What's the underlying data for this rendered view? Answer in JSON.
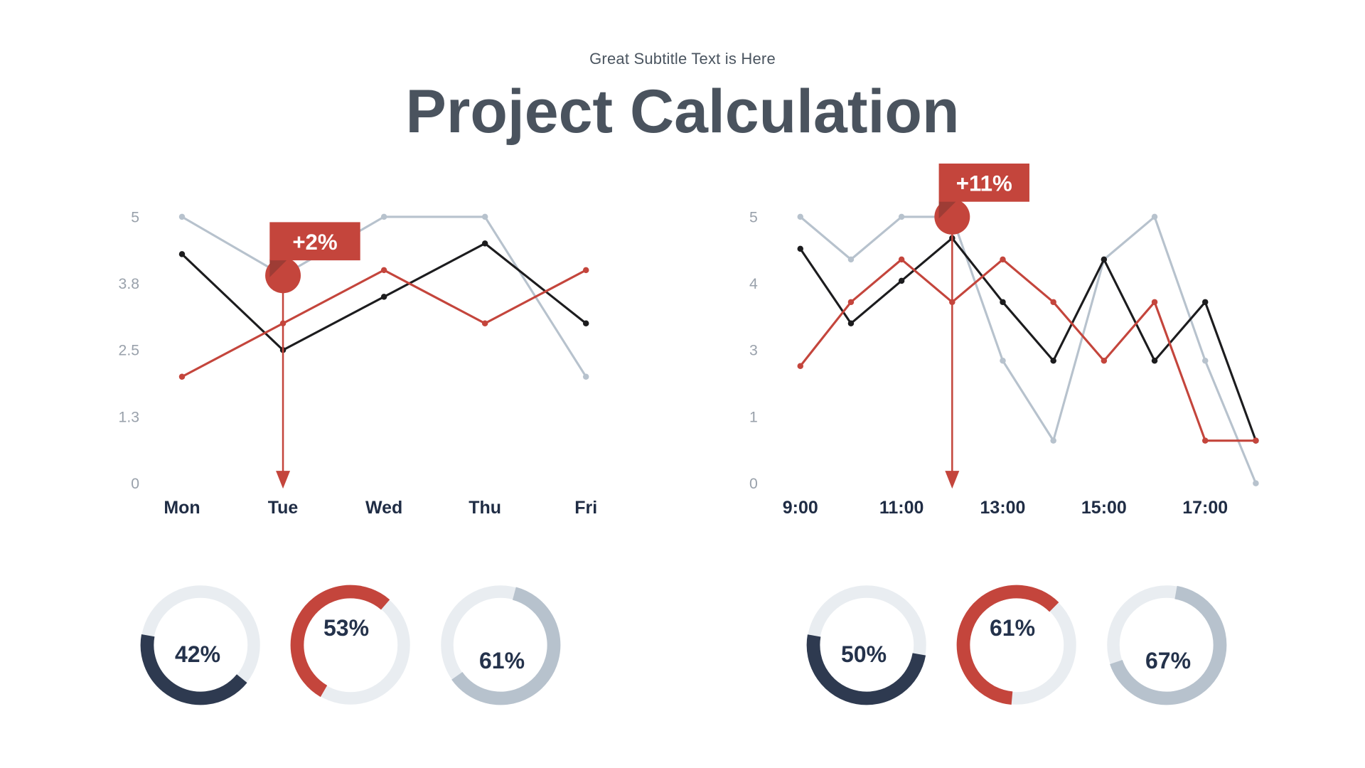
{
  "page": {
    "subtitle": "Great Subtitle Text is Here",
    "title": "Project Calculation"
  },
  "colors": {
    "navy": "#2e3a50",
    "red": "#c4453c",
    "red_dark": "#9e3c35",
    "gray": "#b7c2cd",
    "black": "#1c1c1e",
    "track": "#e9edf1",
    "text_dark": "#1f2c44",
    "tick_gray": "#99a1ab"
  },
  "chart_data": [
    {
      "type": "line",
      "name": "weekday-line-chart",
      "categories": [
        "Mon",
        "Tue",
        "Wed",
        "Thu",
        "Fri"
      ],
      "y_ticks": [
        "5",
        "3.8",
        "2.5",
        "1.3",
        "0"
      ],
      "ylim": [
        0,
        5
      ],
      "grid": false,
      "legend": "none",
      "series": [
        {
          "name": "gray-series",
          "color_key": "gray",
          "values": [
            5,
            3.9,
            5,
            5,
            2
          ]
        },
        {
          "name": "black-series",
          "color_key": "black",
          "values": [
            4.3,
            2.5,
            3.5,
            4.5,
            3
          ]
        },
        {
          "name": "red-series",
          "color_key": "red",
          "values": [
            2,
            3,
            4,
            3,
            4
          ]
        }
      ],
      "annotation": {
        "label": "+2%",
        "point_index": 1,
        "value": 3.9,
        "category": "Tue"
      }
    },
    {
      "type": "line",
      "name": "hourly-line-chart",
      "categories": [
        "9:00",
        "11:00",
        "13:00",
        "15:00",
        "17:00"
      ],
      "x_label_indices": [
        0,
        2,
        4,
        6,
        8
      ],
      "y_ticks": [
        "5",
        "4",
        "3",
        "1",
        "0"
      ],
      "ylim": [
        0,
        5
      ],
      "grid": false,
      "legend": "none",
      "series": [
        {
          "name": "gray-series",
          "color_key": "gray",
          "values": [
            5,
            4.2,
            5,
            5,
            2.3,
            0.8,
            4.2,
            5,
            2.3,
            0
          ]
        },
        {
          "name": "black-series",
          "color_key": "black",
          "values": [
            4.4,
            3,
            3.8,
            4.6,
            3.4,
            2.3,
            4.2,
            2.3,
            3.4,
            0.8
          ]
        },
        {
          "name": "red-series",
          "color_key": "red",
          "values": [
            2.2,
            3.4,
            4.2,
            3.4,
            4.2,
            3.4,
            2.3,
            3.4,
            0.8,
            0.8
          ]
        }
      ],
      "annotation": {
        "label": "+11%",
        "point_index": 3,
        "value": 5,
        "category": "12:00"
      }
    },
    {
      "type": "donut-group",
      "name": "left-donut-group",
      "items": [
        {
          "label": "42%",
          "percent": 42,
          "color_key": "navy",
          "start_deg": 129
        },
        {
          "label": "53%",
          "percent": 53,
          "color_key": "red",
          "start_deg": 210
        },
        {
          "label": "61%",
          "percent": 61,
          "color_key": "gray",
          "start_deg": 15
        }
      ]
    },
    {
      "type": "donut-group",
      "name": "right-donut-group",
      "items": [
        {
          "label": "50%",
          "percent": 50,
          "color_key": "navy",
          "start_deg": 100
        },
        {
          "label": "61%",
          "percent": 61,
          "color_key": "red",
          "start_deg": 185
        },
        {
          "label": "67%",
          "percent": 67,
          "color_key": "gray",
          "start_deg": 10
        }
      ]
    }
  ]
}
